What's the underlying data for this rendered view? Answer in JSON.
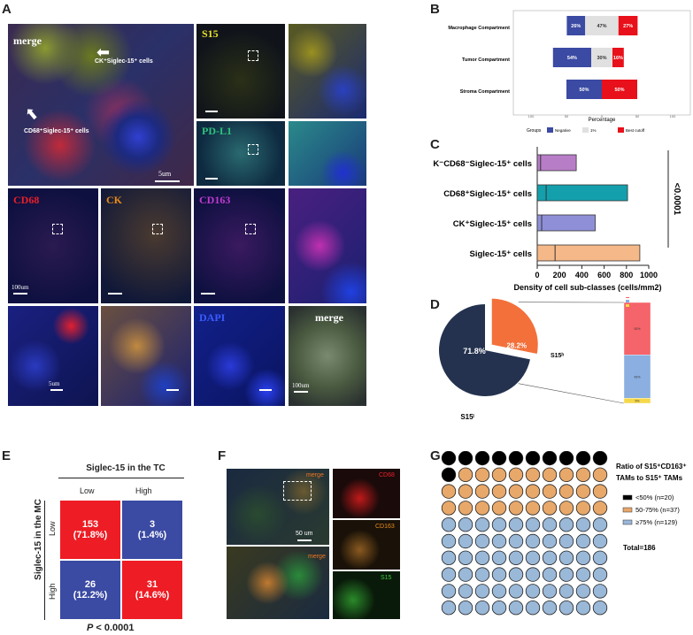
{
  "panels": {
    "A": "A",
    "B": "B",
    "C": "C",
    "D": "D",
    "E": "E",
    "F": "F",
    "G": "G"
  },
  "panel_a": {
    "merge_label": "merge",
    "ck_cells_label": "CK⁺Siglec-15⁺ cells",
    "cd68_cells_label": "CD68⁺Siglec-15⁺ cells",
    "scale_5um": "5um",
    "s15": "S15",
    "pdl1": "PD-L1",
    "cd68": "CD68",
    "ck": "CK",
    "cd163": "CD163",
    "dapi": "DAPI",
    "merge2": "merge",
    "scale_100um": "100um",
    "scale_5um_b": "5um",
    "scale_100um_b": "100um",
    "colors": {
      "s15": "#e8e02a",
      "pdl1": "#2ec27e",
      "cd68": "#e8202a",
      "ck": "#e88a1a",
      "cd163": "#c03ad0",
      "dapi": "#3a5cff"
    }
  },
  "panel_b": {
    "chart_data": {
      "type": "bar",
      "orientation": "horizontal-stacked",
      "categories": [
        "Macrophage Compartment",
        "Tumor Compartment",
        "Stroma Compartment"
      ],
      "series": [
        {
          "name": "Negative",
          "color": "#3b4aa3",
          "values": [
            26,
            54,
            50
          ]
        },
        {
          "name": "1%",
          "color": "#e0e0e0",
          "values": [
            47,
            30,
            0
          ]
        },
        {
          "name": "Best cutoff",
          "color": "#e8101a",
          "values": [
            27,
            16,
            50
          ]
        }
      ],
      "xlabel": "Percentage",
      "xticks": [
        "100",
        "50",
        "0",
        "50",
        "100"
      ],
      "legend_title": "Groups"
    }
  },
  "panel_c": {
    "chart_data": {
      "type": "bar",
      "orientation": "horizontal",
      "categories": [
        "CK⁻CD68⁻Siglec-15⁺ cells",
        "CD68⁺Siglec-15⁺ cells",
        "CK⁺Siglec-15⁺ cells",
        "Siglec-15⁺ cells"
      ],
      "values": [
        350,
        810,
        520,
        920
      ],
      "medians": [
        30,
        80,
        40,
        160
      ],
      "colors": [
        "#b87dc7",
        "#149fac",
        "#8f8fd8",
        "#f5b888"
      ],
      "xlabel": "Density of cell sub-classes (cells/mm2)",
      "xticks": [
        0,
        200,
        400,
        600,
        800,
        1000
      ],
      "xlim": [
        0,
        1000
      ],
      "pvalue": "<0.0001"
    }
  },
  "panel_d": {
    "chart_data": {
      "type": "pie",
      "slices": [
        {
          "label": "S15ˡ",
          "value": 71.8,
          "text": "71.8%",
          "color": "#24324f"
        },
        {
          "label": "S15ʰ",
          "value": 28.2,
          "text": "28.2%",
          "color": "#f3703a"
        }
      ],
      "stack": [
        {
          "name": "S15⁺ in TC and MC",
          "value": 52,
          "color": "#f5646a",
          "text": "52%"
        },
        {
          "name": "S15⁺ in MC",
          "value": 43,
          "color": "#8aafe0",
          "text": "43%"
        },
        {
          "name": "S15⁺ in TC",
          "value": 5,
          "color": "#f5d84a",
          "text": "5%"
        }
      ]
    }
  },
  "panel_e": {
    "title": "Siglec-15 in the TC",
    "col_low": "Low",
    "col_high": "High",
    "row_title": "Siglec-15 in the MC",
    "row_low": "Low",
    "row_high": "High",
    "cells": [
      {
        "count": "153",
        "pct": "(71.8%)",
        "color": "#ee1c24"
      },
      {
        "count": "3",
        "pct": "(1.4%)",
        "color": "#3b4aa3"
      },
      {
        "count": "26",
        "pct": "(12.2%)",
        "color": "#3b4aa3"
      },
      {
        "count": "31",
        "pct": "(14.6%)",
        "color": "#ee1c24"
      }
    ],
    "pvalue_italic": "P",
    "pvalue": " < 0.0001"
  },
  "panel_f": {
    "merge": "merge",
    "merge2": "merge",
    "scale": "50 um",
    "cd68": "CD68",
    "cd163": "CD163",
    "s15": "S15"
  },
  "panel_g": {
    "title_line1": "Ratio of S15⁺CD163⁺",
    "title_line2": "TAMs to S15⁺ TAMs",
    "legend": [
      {
        "label": "<50% (n=20)",
        "color": "#000000",
        "n": 20
      },
      {
        "label": "50-75% (n=37)",
        "color": "#e8a86a",
        "n": 37
      },
      {
        "label": "≥75% (n=129)",
        "color": "#9ab8d8",
        "n": 129
      }
    ],
    "total": "Total=186",
    "grid_counts": {
      "black": 11,
      "orange": 29,
      "blue": 60
    }
  }
}
